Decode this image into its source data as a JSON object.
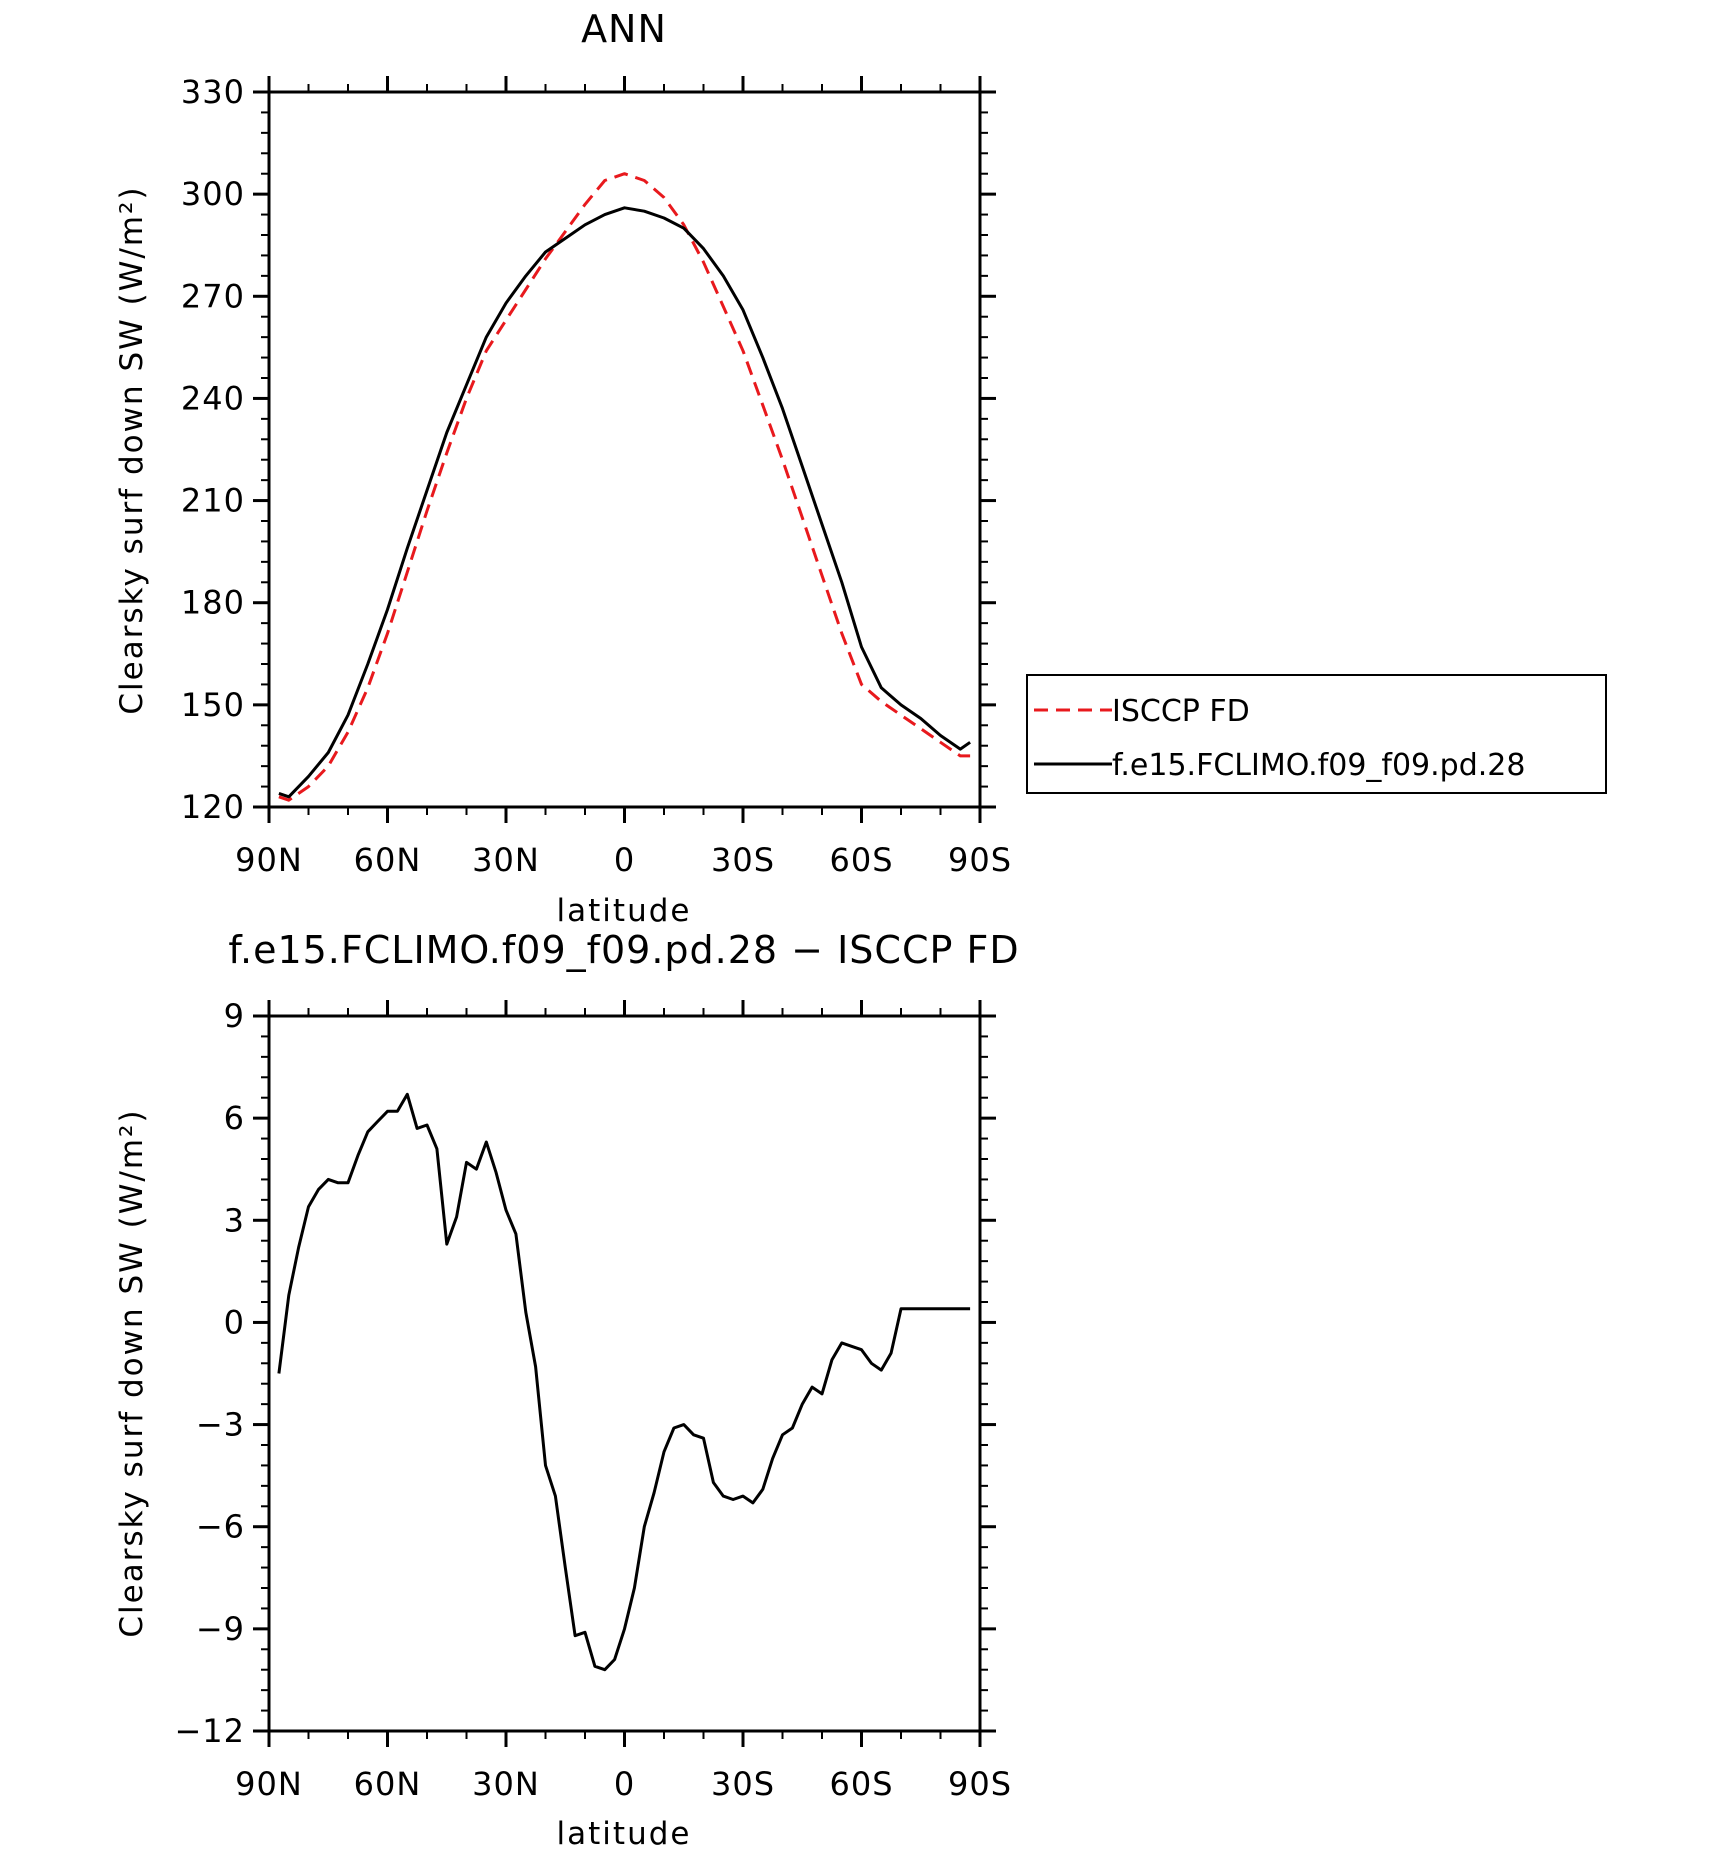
{
  "chart_data": [
    {
      "type": "line",
      "title": "ANN",
      "xlabel": "latitude",
      "ylabel": "Clearsky surf down SW (W/m²)",
      "xlim": [
        90,
        -90
      ],
      "ylim": [
        120,
        330
      ],
      "x_ticks": [
        90,
        60,
        30,
        0,
        -30,
        -60,
        -90
      ],
      "x_tick_labels": [
        "90N",
        "60N",
        "30N",
        "0",
        "30S",
        "60S",
        "90S"
      ],
      "y_ticks": [
        120,
        150,
        180,
        210,
        240,
        270,
        300,
        330
      ],
      "y_tick_labels": [
        "120",
        "150",
        "180",
        "210",
        "240",
        "270",
        "300",
        "330"
      ],
      "grid": false,
      "legend_position": "right",
      "colors": {
        "obs": "#e8191d",
        "model": "#000000"
      },
      "series": [
        {
          "name": "ISCCP FD",
          "style": "dashed",
          "x": [
            87.5,
            85,
            80,
            75,
            70,
            65,
            60,
            55,
            50,
            45,
            40,
            35,
            30,
            25,
            20,
            15,
            10,
            5,
            0,
            -5,
            -10,
            -15,
            -20,
            -25,
            -30,
            -35,
            -40,
            -45,
            -50,
            -55,
            -60,
            -65,
            -70,
            -75,
            -80,
            -85,
            -87.5
          ],
          "y": [
            123,
            122,
            126,
            132,
            142,
            155,
            171,
            189,
            207,
            224,
            240,
            254,
            263,
            272,
            281,
            289,
            297,
            304,
            306,
            304,
            299,
            291,
            280,
            267,
            254,
            238,
            222,
            205,
            188,
            171,
            156,
            151,
            147,
            143,
            139,
            135,
            135
          ]
        },
        {
          "name": "f.e15.FCLIMO.f09_f09.pd.28",
          "style": "solid",
          "x": [
            87.5,
            85,
            80,
            75,
            70,
            65,
            60,
            55,
            50,
            45,
            40,
            35,
            30,
            25,
            20,
            15,
            10,
            5,
            0,
            -5,
            -10,
            -15,
            -20,
            -25,
            -30,
            -35,
            -40,
            -45,
            -50,
            -55,
            -60,
            -65,
            -70,
            -75,
            -80,
            -85,
            -87.5
          ],
          "y": [
            124,
            123,
            129,
            136,
            147,
            162,
            178,
            196,
            213,
            230,
            244,
            258,
            268,
            276,
            283,
            287,
            291,
            294,
            296,
            295,
            293,
            290,
            284,
            276,
            266,
            252,
            237,
            220,
            203,
            186,
            167,
            155,
            150,
            146,
            141,
            137,
            139
          ]
        }
      ]
    },
    {
      "type": "line",
      "title": "f.e15.FCLIMO.f09_f09.pd.28 − ISCCP FD",
      "xlabel": "latitude",
      "ylabel": "Clearsky surf down SW (W/m²)",
      "xlim": [
        90,
        -90
      ],
      "ylim": [
        -12,
        9
      ],
      "x_ticks": [
        90,
        60,
        30,
        0,
        -30,
        -60,
        -90
      ],
      "x_tick_labels": [
        "90N",
        "60N",
        "30N",
        "0",
        "30S",
        "60S",
        "90S"
      ],
      "y_ticks": [
        -12,
        -9,
        -6,
        -3,
        0,
        3,
        6,
        9
      ],
      "y_tick_labels": [
        "−12",
        "−9",
        "−6",
        "−3",
        "0",
        "3",
        "6",
        "9"
      ],
      "grid": false,
      "series": [
        {
          "style": "solid",
          "x": [
            87.5,
            85,
            82.5,
            80,
            77.5,
            75,
            72.5,
            70,
            67.5,
            65,
            62.5,
            60,
            57.5,
            55,
            52.5,
            50,
            47.5,
            45,
            42.5,
            40,
            37.5,
            35,
            32.5,
            30,
            27.5,
            25,
            22.5,
            20,
            17.5,
            15,
            12.5,
            10,
            7.5,
            5,
            2.5,
            0,
            -2.5,
            -5,
            -7.5,
            -10,
            -12.5,
            -15,
            -17.5,
            -20,
            -22.5,
            -25,
            -27.5,
            -30,
            -32.5,
            -35,
            -37.5,
            -40,
            -42.5,
            -45,
            -47.5,
            -50,
            -52.5,
            -55,
            -57.5,
            -60,
            -62.5,
            -65,
            -67.5,
            -70,
            -72.5,
            -75,
            -77.5,
            -80,
            -82.5,
            -85,
            -87.5
          ],
          "y": [
            -1.5,
            0.8,
            2.2,
            3.4,
            3.9,
            4.2,
            4.1,
            4.1,
            4.9,
            5.6,
            5.9,
            6.2,
            6.2,
            6.7,
            5.7,
            5.8,
            5.1,
            2.3,
            3.1,
            4.7,
            4.5,
            5.3,
            4.4,
            3.3,
            2.6,
            0.3,
            -1.3,
            -4.2,
            -5.1,
            -7.2,
            -9.2,
            -9.1,
            -10.1,
            -10.2,
            -9.9,
            -9.0,
            -7.8,
            -6.0,
            -5.0,
            -3.8,
            -3.1,
            -3.0,
            -3.3,
            -3.4,
            -4.7,
            -5.1,
            -5.2,
            -5.1,
            -5.3,
            -4.9,
            -4.0,
            -3.3,
            -3.1,
            -2.4,
            -1.9,
            -2.1,
            -1.1,
            -0.6,
            -0.7,
            -0.8,
            -1.2,
            -1.4,
            -0.9,
            0.4,
            0.4,
            0.4,
            0.4,
            0.4,
            0.4,
            0.4,
            0.4
          ]
        }
      ]
    }
  ]
}
